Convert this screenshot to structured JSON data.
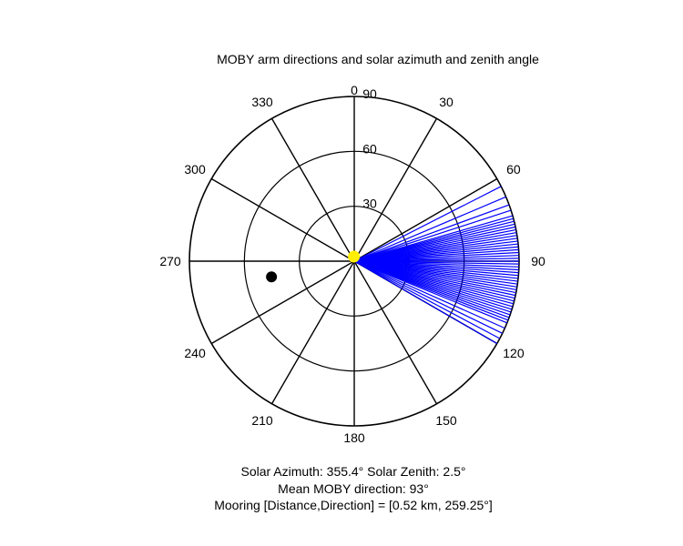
{
  "chart_data": {
    "type": "polar",
    "title": "MOBY arm directions and solar azimuth and zenith angle",
    "angle_ticks": [
      "0",
      "30",
      "60",
      "90",
      "120",
      "150",
      "180",
      "210",
      "240",
      "270",
      "300",
      "330"
    ],
    "radial_ticks": [
      "30",
      "60",
      "90"
    ],
    "radial_range": [
      0,
      90
    ],
    "angle_orientation": "clockwise-from-north",
    "moby_arm_directions_deg": [
      63,
      67,
      70,
      72,
      74,
      75,
      76,
      77,
      78,
      79,
      80,
      81,
      82,
      83,
      84,
      85,
      86,
      87,
      88,
      89,
      90,
      91,
      92,
      93,
      94,
      95,
      96,
      97,
      98,
      99,
      100,
      101,
      102,
      103,
      104,
      105,
      106,
      107,
      108,
      109,
      110,
      111,
      112,
      114,
      116,
      118,
      120
    ],
    "sun": {
      "azimuth": 355.4,
      "zenith": 2.5
    },
    "mooring": {
      "direction": 259.25,
      "radius": 46
    },
    "colors": {
      "arms": "#0000ff",
      "sun": "#ffee00",
      "mooring": "#000000",
      "grid": "#000000"
    }
  },
  "captions": {
    "line1": "Solar Azimuth: 355.4°   Solar Zenith: 2.5°",
    "line2": "Mean MOBY direction: 93°",
    "line3": "Mooring [Distance,Direction] = [0.52 km, 259.25°]"
  }
}
